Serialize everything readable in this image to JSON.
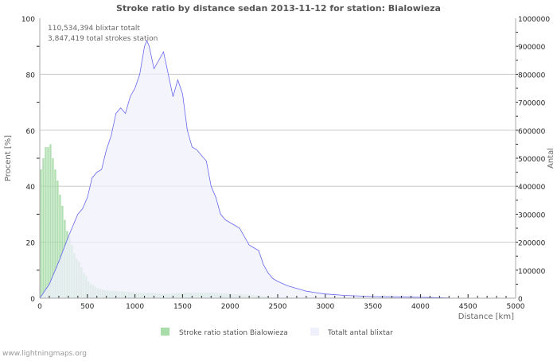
{
  "chart_data": {
    "type": "bar+area",
    "title": "Stroke ratio by distance sedan 2013-11-12 for station: Bialowieza",
    "xlabel": "Distance   [km]",
    "ylabel": "Procent   [%]",
    "y2label": "Antal",
    "xlim": [
      0,
      5000
    ],
    "ylim": [
      0,
      100
    ],
    "y2lim": [
      0,
      1000000
    ],
    "x_ticks": [
      "0",
      "500",
      "1000",
      "1500",
      "2000",
      "2500",
      "3000",
      "3500",
      "4000",
      "4500",
      "5000"
    ],
    "y_ticks": [
      "0",
      "20",
      "40",
      "60",
      "80",
      "100"
    ],
    "y2_ticks": [
      "0",
      "100000",
      "200000",
      "300000",
      "400000",
      "500000",
      "600000",
      "700000",
      "800000",
      "900000",
      "1000000"
    ],
    "annotations": [
      "110,534,394 blixtar totalt",
      "3,847,419 total strokes station"
    ],
    "legend": [
      "Stroke ratio station Bialowieza",
      "Totalt antal blixtar"
    ],
    "colors": {
      "bars": "#a8dca8",
      "area_fill": "#f0f0fc",
      "area_line": "#6666ee"
    },
    "ratio_series": {
      "name": "Stroke ratio station Bialowieza",
      "bin_km": 25,
      "x": [
        0,
        25,
        50,
        75,
        100,
        125,
        150,
        175,
        200,
        225,
        250,
        275,
        300,
        325,
        350,
        375,
        400,
        425,
        450,
        475,
        500,
        525,
        550,
        575,
        600,
        625,
        650,
        700,
        800,
        1000,
        1200,
        1300,
        1500,
        1600,
        1800,
        2000,
        2200,
        2300,
        2400,
        2500,
        3000,
        3500,
        4000,
        5000
      ],
      "y": [
        46,
        50,
        54,
        54,
        55,
        50,
        46,
        42,
        37,
        33,
        28,
        24,
        22,
        19,
        16,
        14,
        13,
        11,
        9,
        8,
        6,
        5,
        4.5,
        4,
        3.5,
        3.2,
        3,
        2.7,
        2.5,
        2,
        1.8,
        1.5,
        2,
        2,
        2,
        1.5,
        1.2,
        0.8,
        0.5,
        0.3,
        0.2,
        0.2,
        0.1,
        0.1
      ]
    },
    "count_series": {
      "name": "Totalt antal blixtar",
      "x": [
        0,
        100,
        200,
        300,
        400,
        450,
        500,
        550,
        600,
        650,
        700,
        750,
        800,
        850,
        900,
        950,
        1000,
        1050,
        1100,
        1125,
        1150,
        1200,
        1250,
        1300,
        1350,
        1400,
        1450,
        1500,
        1550,
        1600,
        1650,
        1700,
        1750,
        1800,
        1850,
        1900,
        1950,
        2000,
        2050,
        2100,
        2150,
        2200,
        2250,
        2300,
        2350,
        2400,
        2450,
        2500,
        2600,
        2700,
        2800,
        2900,
        3000,
        3200,
        3500,
        4000,
        4300
      ],
      "y": [
        0,
        50000,
        130000,
        220000,
        300000,
        320000,
        360000,
        430000,
        450000,
        460000,
        530000,
        580000,
        660000,
        680000,
        660000,
        720000,
        750000,
        800000,
        900000,
        920000,
        900000,
        820000,
        850000,
        880000,
        800000,
        720000,
        780000,
        730000,
        600000,
        540000,
        530000,
        510000,
        490000,
        400000,
        360000,
        300000,
        280000,
        270000,
        260000,
        250000,
        220000,
        190000,
        180000,
        170000,
        120000,
        90000,
        70000,
        60000,
        45000,
        35000,
        25000,
        20000,
        15000,
        10000,
        6000,
        3000,
        1000
      ]
    }
  },
  "footer": "www.lightningmaps.org"
}
